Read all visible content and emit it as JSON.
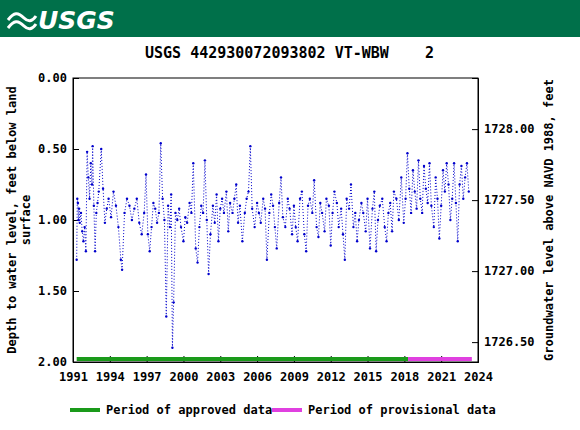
{
  "header": {
    "logo": "USGS"
  },
  "chart_data": {
    "type": "line",
    "title": "USGS 442930072093802 VT-WBW    2",
    "ylabel": [
      "Depth to water level, feet below land",
      "surface"
    ],
    "y2label": "Groundwater level above NAVD 1988, feet",
    "xlim": [
      1991,
      2024
    ],
    "xticks": [
      1991,
      1994,
      1997,
      2000,
      2003,
      2006,
      2009,
      2012,
      2015,
      2018,
      2021,
      2024
    ],
    "ylim": [
      0,
      2
    ],
    "yticks": [
      {
        "value": 0,
        "label": "0.00"
      },
      {
        "value": 0.5,
        "label": "0.50"
      },
      {
        "value": 1,
        "label": "1.00"
      },
      {
        "value": 1.5,
        "label": "1.50"
      },
      {
        "value": 2,
        "label": "2.00"
      }
    ],
    "y2lim": [
      1728.36,
      1726.36
    ],
    "y2ticks": [
      {
        "value": 1726.5,
        "label": "1726.50"
      },
      {
        "value": 1727,
        "label": "1727.00"
      },
      {
        "value": 1727.5,
        "label": "1727.50"
      },
      {
        "value": 1728,
        "label": "1728.00"
      }
    ],
    "color": "#0000cc",
    "marker": "point",
    "line_style": "dotted",
    "legend": "bottom",
    "periods": [
      {
        "name": "Period of approved data",
        "color": "#1a9a1a",
        "start": 1991.3,
        "end": 2018.3
      },
      {
        "name": "Period of provisional data",
        "color": "#e040e0",
        "start": 2018.3,
        "end": 2023.5
      }
    ],
    "x": [
      1991.3,
      1991.35,
      1991.4,
      1991.45,
      1991.5,
      1991.55,
      1991.65,
      1991.75,
      1991.85,
      1991.95,
      1992.05,
      1992.15,
      1992.25,
      1992.35,
      1992.45,
      1992.55,
      1992.6,
      1992.7,
      1992.8,
      1992.9,
      1993.0,
      1993.1,
      1993.3,
      1993.45,
      1993.6,
      1993.75,
      1993.9,
      1994.1,
      1994.3,
      1994.5,
      1994.7,
      1994.9,
      1995.0,
      1995.2,
      1995.4,
      1995.6,
      1995.8,
      1996.0,
      1996.2,
      1996.4,
      1996.6,
      1996.8,
      1996.95,
      1997.1,
      1997.25,
      1997.4,
      1997.55,
      1997.7,
      1997.85,
      1998.0,
      1998.15,
      1998.3,
      1998.45,
      1998.6,
      1998.75,
      1998.9,
      1999.0,
      1999.1,
      1999.2,
      1999.35,
      1999.5,
      1999.65,
      1999.8,
      2000.0,
      2000.15,
      2000.3,
      2000.5,
      2000.65,
      2000.8,
      2001.0,
      2001.15,
      2001.3,
      2001.45,
      2001.6,
      2001.75,
      2001.9,
      2002.05,
      2002.2,
      2002.4,
      2002.55,
      2002.7,
      2002.85,
      2003.0,
      2003.15,
      2003.3,
      2003.5,
      2003.65,
      2003.8,
      2004.0,
      2004.15,
      2004.3,
      2004.45,
      2004.6,
      2004.8,
      2005.0,
      2005.15,
      2005.3,
      2005.45,
      2005.6,
      2005.8,
      2006.0,
      2006.15,
      2006.3,
      2006.5,
      2006.65,
      2006.8,
      2007.0,
      2007.15,
      2007.3,
      2007.45,
      2007.6,
      2007.8,
      2007.95,
      2008.1,
      2008.3,
      2008.5,
      2008.65,
      2008.85,
      2009.0,
      2009.15,
      2009.3,
      2009.5,
      2009.65,
      2009.85,
      2010.0,
      2010.15,
      2010.3,
      2010.5,
      2010.65,
      2010.85,
      2011.0,
      2011.15,
      2011.3,
      2011.5,
      2011.65,
      2011.85,
      2012.0,
      2012.15,
      2012.3,
      2012.5,
      2012.65,
      2012.85,
      2013.0,
      2013.15,
      2013.3,
      2013.5,
      2013.65,
      2013.85,
      2014.0,
      2014.15,
      2014.3,
      2014.5,
      2014.65,
      2014.85,
      2015.0,
      2015.2,
      2015.4,
      2015.55,
      2015.7,
      2015.85,
      2016.0,
      2016.2,
      2016.4,
      2016.55,
      2016.7,
      2016.85,
      2017.0,
      2017.15,
      2017.35,
      2017.55,
      2017.75,
      2017.95,
      2018.1,
      2018.25,
      2018.4,
      2018.55,
      2018.7,
      2018.85,
      2019.0,
      2019.15,
      2019.3,
      2019.45,
      2019.6,
      2019.75,
      2019.9,
      2020.05,
      2020.2,
      2020.4,
      2020.55,
      2020.7,
      2020.85,
      2021.0,
      2021.15,
      2021.3,
      2021.45,
      2021.6,
      2021.75,
      2021.9,
      2022.05,
      2022.2,
      2022.35,
      2022.5,
      2022.65,
      2022.8,
      2022.95,
      2023.1,
      2023.25
    ],
    "values": [
      1.28,
      0.85,
      0.88,
      1.0,
      0.92,
      1.02,
      0.95,
      1.08,
      1.15,
      1.05,
      1.22,
      0.52,
      0.7,
      0.85,
      0.6,
      0.75,
      0.48,
      0.9,
      1.22,
      0.95,
      0.88,
      0.8,
      0.5,
      0.78,
      1.02,
      0.92,
      0.85,
      0.98,
      0.8,
      0.9,
      1.05,
      1.28,
      1.35,
      0.95,
      0.85,
      0.9,
      1.0,
      0.92,
      0.85,
      1.02,
      1.1,
      0.95,
      0.68,
      1.1,
      1.22,
      1.05,
      0.88,
      0.92,
      1.02,
      0.95,
      0.46,
      0.85,
      1.0,
      1.68,
      0.9,
      1.05,
      0.82,
      1.9,
      1.58,
      0.95,
      1.0,
      0.92,
      1.05,
      1.15,
      0.98,
      1.02,
      0.88,
      0.95,
      0.6,
      1.2,
      1.3,
      1.05,
      0.9,
      0.95,
      0.58,
      1.0,
      1.38,
      1.1,
      0.9,
      1.02,
      0.82,
      1.15,
      0.92,
      0.85,
      0.95,
      0.8,
      1.08,
      0.88,
      0.95,
      0.85,
      0.75,
      1.02,
      0.9,
      1.15,
      0.95,
      0.85,
      0.8,
      0.48,
      0.92,
      1.05,
      0.88,
      0.95,
      1.02,
      0.85,
      0.92,
      1.28,
      0.95,
      0.82,
      0.9,
      1.05,
      1.2,
      0.88,
      0.7,
      0.98,
      1.05,
      0.85,
      0.92,
      1.1,
      0.9,
      1.05,
      1.15,
      0.85,
      0.8,
      1.1,
      1.22,
      0.9,
      0.85,
      0.95,
      0.72,
      1.05,
      1.12,
      0.88,
      0.95,
      1.08,
      0.85,
      0.9,
      1.18,
      0.95,
      0.8,
      0.88,
      1.05,
      0.92,
      1.1,
      1.28,
      0.85,
      0.92,
      0.75,
      1.05,
      0.95,
      1.15,
      1.0,
      0.88,
      0.95,
      1.08,
      0.85,
      1.2,
      0.92,
      0.8,
      1.22,
      1.0,
      0.9,
      0.85,
      1.05,
      1.15,
      0.95,
      0.88,
      1.08,
      0.8,
      0.85,
      1.0,
      0.7,
      1.02,
      0.85,
      0.53,
      0.78,
      0.95,
      0.65,
      0.8,
      0.92,
      0.58,
      0.85,
      0.95,
      0.62,
      0.78,
      0.88,
      0.6,
      0.9,
      1.05,
      0.7,
      0.85,
      1.13,
      0.9,
      0.65,
      0.8,
      0.6,
      0.75,
      1.0,
      0.85,
      0.6,
      0.88,
      1.15,
      0.75,
      0.62,
      0.85,
      0.7,
      0.6,
      0.8
    ]
  }
}
